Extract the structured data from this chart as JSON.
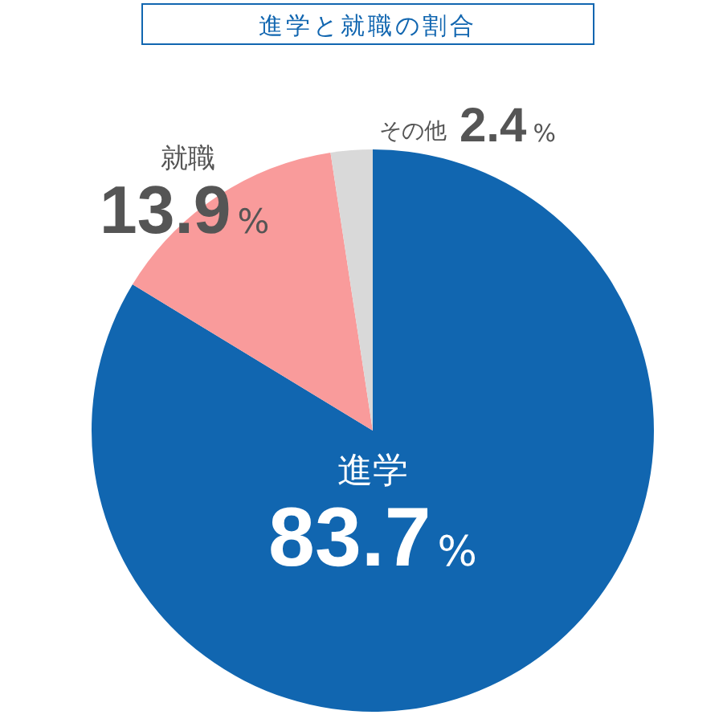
{
  "chart_data": {
    "type": "pie",
    "title": "進学と就職の割合",
    "categories": [
      "進学",
      "就職",
      "その他"
    ],
    "values": [
      83.7,
      13.9,
      2.4
    ],
    "colors": [
      "#1166b0",
      "#f99b9b",
      "#d9d9d9"
    ],
    "value_labels": [
      "83.7%",
      "13.9%",
      "2.4%"
    ],
    "legend": false
  }
}
